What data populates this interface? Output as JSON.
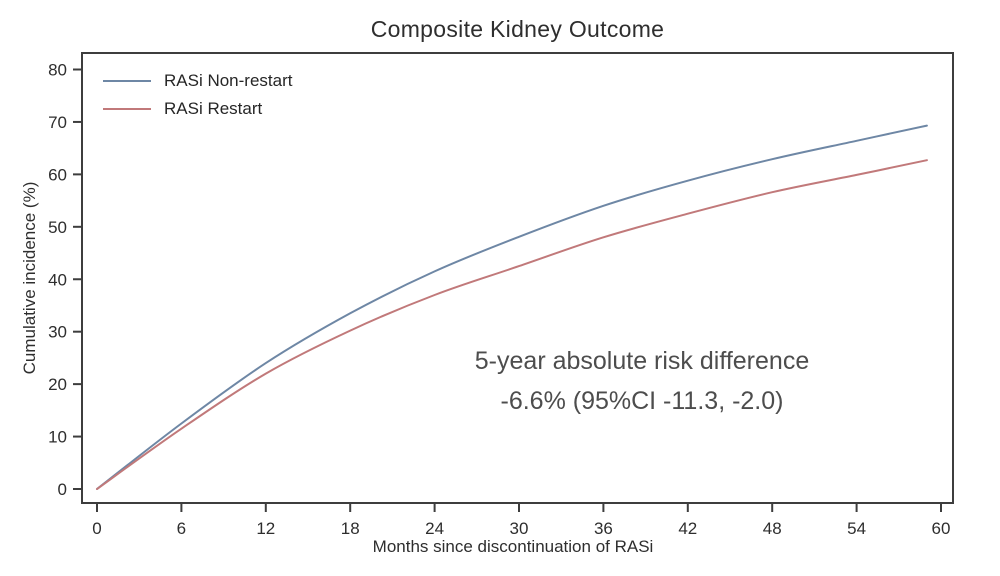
{
  "chart_data": {
    "type": "line",
    "title": "Composite Kidney Outcome",
    "xlabel": "Months since discontinuation of RASi",
    "ylabel": "Cumulative incidence (%)",
    "x": [
      0,
      6,
      12,
      18,
      24,
      30,
      36,
      42,
      48,
      54,
      59
    ],
    "series": [
      {
        "name": "RASi Non-restart",
        "color": "#6e87a5",
        "values": [
          0,
          12.5,
          24.0,
          33.5,
          41.5,
          48.1,
          54.0,
          58.8,
          62.9,
          66.4,
          69.3
        ]
      },
      {
        "name": "RASi Restart",
        "color": "#c1797a",
        "values": [
          0,
          11.5,
          22.0,
          30.2,
          37.0,
          42.5,
          48.0,
          52.5,
          56.6,
          59.9,
          62.7
        ]
      }
    ],
    "xlim": [
      0,
      60
    ],
    "ylim": [
      0,
      80
    ],
    "xticks": [
      0,
      6,
      12,
      18,
      24,
      30,
      36,
      42,
      48,
      54,
      60
    ],
    "yticks": [
      0,
      10,
      20,
      30,
      40,
      50,
      60,
      70,
      80
    ],
    "grid": false,
    "legend_position": "top-left",
    "axis_color": "#3d3d3d",
    "tick_label_color": "#2e2e2e",
    "annotation": {
      "line1": "5-year absolute risk difference",
      "line2": "-6.6% (95%CI -11.3, -2.0)"
    }
  }
}
